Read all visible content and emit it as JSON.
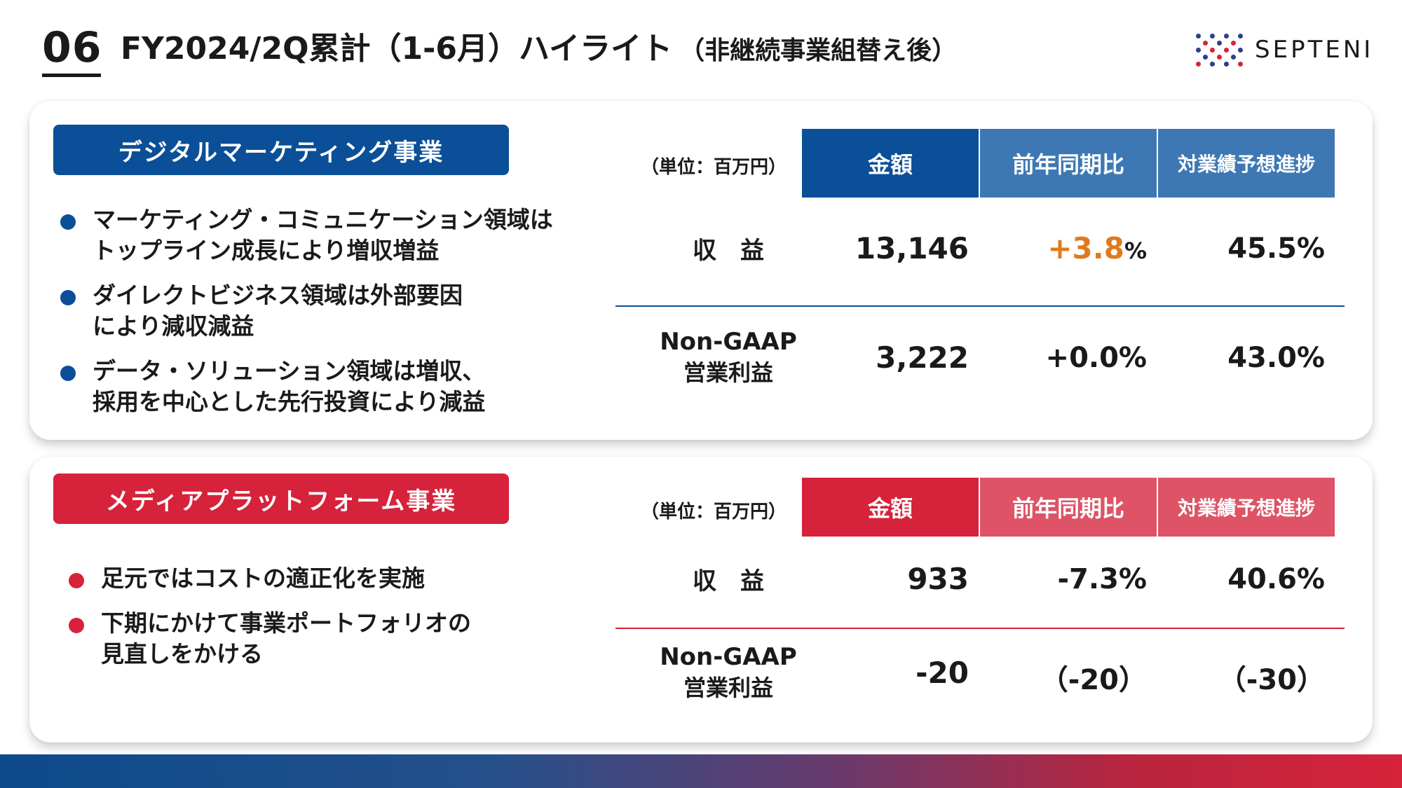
{
  "header": {
    "number": "06",
    "title": "FY2024/2Q累計（1-6月）ハイライト",
    "subtitle": "（非継続事業組替え後）"
  },
  "logo": {
    "text": "SEPTENI"
  },
  "colors": {
    "digital_primary": "#0a4f97",
    "digital_secondary": "#3d78b4",
    "media_primary": "#d6223a",
    "media_secondary": "#de5366",
    "positive_accent": "#e07a1c"
  },
  "digital": {
    "label": "デジタルマーケティング事業",
    "bullets": [
      "マーケティング・コミュニケーション領域は\nトップライン成長により増収増益",
      "ダイレクトビジネス領域は外部要因\nにより減収減益",
      "データ・ソリューション領域は増収、\n採用を中心とした先行投資により減益"
    ],
    "unit": "（単位：百万円）",
    "columns": [
      "金額",
      "前年同期比",
      "対業績予想進捗"
    ],
    "rows": [
      {
        "label1": "収　益",
        "label2": "",
        "amount": "13,146",
        "yoy": "+3.8",
        "yoy_unit": "%",
        "progress": "45.5%"
      },
      {
        "label1": "Non-GAAP",
        "label2": "営業利益",
        "amount": "3,222",
        "yoy": "+0.0%",
        "progress": "43.0%"
      }
    ]
  },
  "media": {
    "label": "メディアプラットフォーム事業",
    "bullets": [
      "足元ではコストの適正化を実施",
      "下期にかけて事業ポートフォリオの\n見直しをかける"
    ],
    "unit": "（単位：百万円）",
    "columns": [
      "金額",
      "前年同期比",
      "対業績予想進捗"
    ],
    "rows": [
      {
        "label1": "収　益",
        "label2": "",
        "amount": "933",
        "yoy": "-7.3%",
        "progress": "40.6%"
      },
      {
        "label1": "Non-GAAP",
        "label2": "営業利益",
        "amount": "-20",
        "yoy": "（-20）",
        "progress": "（-30）"
      }
    ]
  }
}
